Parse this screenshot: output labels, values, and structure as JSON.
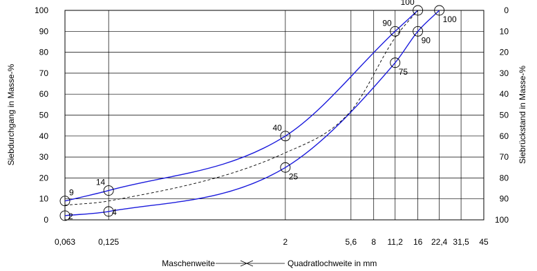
{
  "chart_data": {
    "type": "line",
    "x_axis": {
      "label_left": "Maschenweite",
      "label_right": "Quadratlochweite in mm",
      "scale": "log",
      "ticks": [
        "0,063",
        "0,125",
        "2",
        "5,6",
        "8",
        "11,2",
        "16",
        "22,4",
        "31,5",
        "45"
      ],
      "tick_values": [
        0.063,
        0.125,
        2,
        5.6,
        8,
        11.2,
        16,
        22.4,
        31.5,
        45
      ]
    },
    "y_axis_left": {
      "label": "Siebdurchgang in Masse-%",
      "ylim": [
        0,
        100
      ],
      "ticks": [
        "0",
        "10",
        "20",
        "30",
        "40",
        "50",
        "60",
        "70",
        "80",
        "90",
        "100"
      ]
    },
    "y_axis_right": {
      "label": "Siebrückstand in Masse-%",
      "ticks": [
        "100",
        "90",
        "80",
        "70",
        "60",
        "50",
        "40",
        "30",
        "20",
        "10",
        "0"
      ]
    },
    "grid": true,
    "series": [
      {
        "role": "upper-limit",
        "color": "#1a1adc",
        "style": "solid",
        "x": [
          0.063,
          0.125,
          2,
          11.2,
          16
        ],
        "values": [
          9,
          14,
          40,
          90,
          100
        ]
      },
      {
        "role": "lower-limit",
        "color": "#1a1adc",
        "style": "solid",
        "x": [
          0.063,
          0.125,
          2,
          11.2,
          16,
          22.4
        ],
        "values": [
          2,
          4,
          25,
          75,
          90,
          100
        ]
      },
      {
        "role": "sieve-curve",
        "color": "#000000",
        "style": "dashed",
        "x": [
          0.063,
          0.125,
          2,
          5.6,
          11.2,
          16
        ],
        "values": [
          7,
          9,
          32,
          52,
          87,
          100
        ]
      }
    ],
    "markers": [
      {
        "x": 0.063,
        "y": 9,
        "label": "9",
        "pos": "top-right"
      },
      {
        "x": 0.063,
        "y": 2,
        "label": "2",
        "pos": "right"
      },
      {
        "x": 0.125,
        "y": 14,
        "label": "14",
        "pos": "top-left"
      },
      {
        "x": 0.125,
        "y": 4,
        "label": "4",
        "pos": "right"
      },
      {
        "x": 2,
        "y": 40,
        "label": "40",
        "pos": "top-left"
      },
      {
        "x": 2,
        "y": 25,
        "label": "25",
        "pos": "bottom-right"
      },
      {
        "x": 11.2,
        "y": 90,
        "label": "90",
        "pos": "top-left"
      },
      {
        "x": 11.2,
        "y": 75,
        "label": "75",
        "pos": "bottom-right"
      },
      {
        "x": 16,
        "y": 100,
        "label": "100",
        "pos": "top-left"
      },
      {
        "x": 16,
        "y": 90,
        "label": "90",
        "pos": "bottom-right"
      },
      {
        "x": 22.4,
        "y": 100,
        "label": "100",
        "pos": "bottom-right"
      }
    ]
  }
}
